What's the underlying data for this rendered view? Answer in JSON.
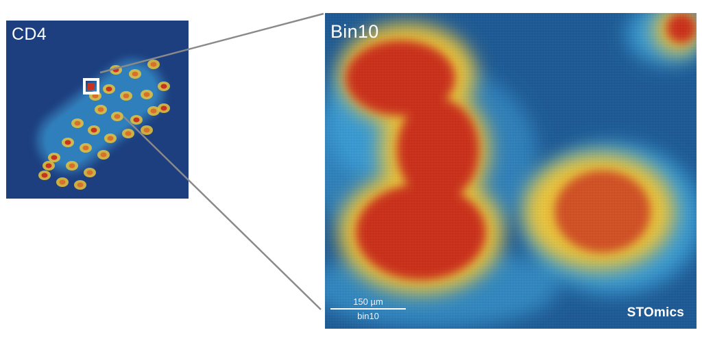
{
  "overview": {
    "label": "CD4",
    "background": "#1d3f7f",
    "highlight_color": "#ffffff"
  },
  "zoom": {
    "label": "Bin10",
    "scalebar": {
      "length": "150 µm",
      "unit": "bin10"
    },
    "brand": "STOmics"
  },
  "colors": {
    "low": "#1f5a94",
    "mid": "#3a9ad0",
    "high_low": "#e8c33c",
    "high": "#c8321f",
    "connector": "#8a8a8a"
  }
}
